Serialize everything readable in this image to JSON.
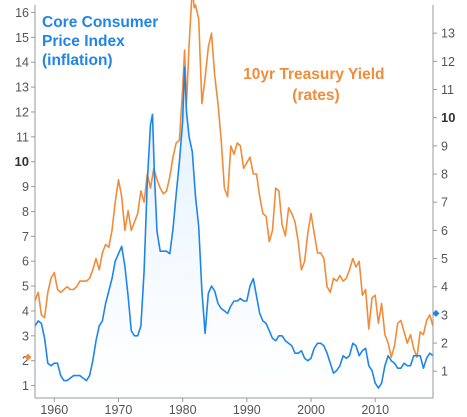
{
  "chart_data": {
    "type": "line",
    "title": "",
    "xlabel": "",
    "x_ticks": [
      "1960",
      "1970",
      "1980",
      "1990",
      "2000",
      "2010"
    ],
    "xlim": [
      1957,
      2019
    ],
    "left_axis": {
      "range": [
        0.5,
        16.3
      ],
      "ticks": [
        "1",
        "2",
        "3",
        "4",
        "5",
        "6",
        "7",
        "8",
        "9",
        "10",
        "11",
        "12",
        "13",
        "14",
        "15",
        "16"
      ],
      "bold_tick": "10"
    },
    "right_axis": {
      "range": [
        0.05,
        14.0
      ],
      "ticks": [
        "1",
        "2",
        "3",
        "4",
        "5",
        "6",
        "7",
        "8",
        "9",
        "10",
        "11",
        "12",
        "13"
      ],
      "bold_tick": "10"
    },
    "grid": false,
    "series": [
      {
        "name_lines": [
          "Core Consumer",
          "Price Index",
          "(inflation)"
        ],
        "color": "#1f86e8",
        "fill": "#dceeff",
        "axis": "left",
        "points": [
          [
            1957.0,
            3.4
          ],
          [
            1957.5,
            3.6
          ],
          [
            1958.0,
            3.5
          ],
          [
            1958.5,
            2.9
          ],
          [
            1959.0,
            1.9
          ],
          [
            1959.5,
            1.8
          ],
          [
            1960.0,
            1.9
          ],
          [
            1960.5,
            1.9
          ],
          [
            1961.0,
            1.4
          ],
          [
            1961.5,
            1.2
          ],
          [
            1962.0,
            1.2
          ],
          [
            1962.5,
            1.3
          ],
          [
            1963.0,
            1.4
          ],
          [
            1963.5,
            1.4
          ],
          [
            1964.0,
            1.4
          ],
          [
            1964.5,
            1.3
          ],
          [
            1965.0,
            1.2
          ],
          [
            1965.5,
            1.4
          ],
          [
            1966.0,
            2.0
          ],
          [
            1966.5,
            2.8
          ],
          [
            1967.0,
            3.4
          ],
          [
            1967.5,
            3.6
          ],
          [
            1968.0,
            4.3
          ],
          [
            1968.5,
            4.8
          ],
          [
            1969.0,
            5.3
          ],
          [
            1969.5,
            6.0
          ],
          [
            1970.0,
            6.3
          ],
          [
            1970.5,
            6.6
          ],
          [
            1971.0,
            5.8
          ],
          [
            1971.5,
            4.6
          ],
          [
            1972.0,
            3.2
          ],
          [
            1972.5,
            3.0
          ],
          [
            1973.0,
            3.0
          ],
          [
            1973.5,
            3.4
          ],
          [
            1974.0,
            5.6
          ],
          [
            1974.5,
            9.2
          ],
          [
            1975.0,
            11.5
          ],
          [
            1975.3,
            11.9
          ],
          [
            1975.6,
            9.5
          ],
          [
            1976.0,
            7.2
          ],
          [
            1976.5,
            6.4
          ],
          [
            1977.0,
            6.4
          ],
          [
            1977.5,
            6.4
          ],
          [
            1978.0,
            6.3
          ],
          [
            1978.5,
            7.3
          ],
          [
            1979.0,
            8.7
          ],
          [
            1979.5,
            10.0
          ],
          [
            1980.0,
            11.6
          ],
          [
            1980.3,
            13.8
          ],
          [
            1980.6,
            12.0
          ],
          [
            1981.0,
            11.0
          ],
          [
            1981.5,
            10.4
          ],
          [
            1982.0,
            8.6
          ],
          [
            1982.5,
            7.4
          ],
          [
            1983.0,
            4.8
          ],
          [
            1983.5,
            3.1
          ],
          [
            1984.0,
            4.7
          ],
          [
            1984.5,
            5.0
          ],
          [
            1985.0,
            4.8
          ],
          [
            1985.5,
            4.3
          ],
          [
            1986.0,
            4.1
          ],
          [
            1986.5,
            4.0
          ],
          [
            1987.0,
            3.9
          ],
          [
            1987.5,
            4.2
          ],
          [
            1988.0,
            4.4
          ],
          [
            1988.5,
            4.4
          ],
          [
            1989.0,
            4.5
          ],
          [
            1989.5,
            4.4
          ],
          [
            1990.0,
            4.4
          ],
          [
            1990.5,
            5.0
          ],
          [
            1991.0,
            5.3
          ],
          [
            1991.5,
            4.6
          ],
          [
            1992.0,
            3.9
          ],
          [
            1992.5,
            3.6
          ],
          [
            1993.0,
            3.5
          ],
          [
            1993.5,
            3.2
          ],
          [
            1994.0,
            2.9
          ],
          [
            1994.5,
            2.8
          ],
          [
            1995.0,
            3.0
          ],
          [
            1995.5,
            3.0
          ],
          [
            1996.0,
            2.8
          ],
          [
            1996.5,
            2.7
          ],
          [
            1997.0,
            2.6
          ],
          [
            1997.5,
            2.3
          ],
          [
            1998.0,
            2.3
          ],
          [
            1998.5,
            2.4
          ],
          [
            1999.0,
            2.1
          ],
          [
            1999.5,
            2.0
          ],
          [
            2000.0,
            2.1
          ],
          [
            2000.5,
            2.5
          ],
          [
            2001.0,
            2.7
          ],
          [
            2001.5,
            2.7
          ],
          [
            2002.0,
            2.6
          ],
          [
            2002.5,
            2.3
          ],
          [
            2003.0,
            1.9
          ],
          [
            2003.5,
            1.5
          ],
          [
            2004.0,
            1.6
          ],
          [
            2004.5,
            1.8
          ],
          [
            2005.0,
            2.2
          ],
          [
            2005.5,
            2.1
          ],
          [
            2006.0,
            2.2
          ],
          [
            2006.5,
            2.7
          ],
          [
            2007.0,
            2.6
          ],
          [
            2007.5,
            2.2
          ],
          [
            2008.0,
            2.4
          ],
          [
            2008.5,
            2.5
          ],
          [
            2009.0,
            1.8
          ],
          [
            2009.5,
            1.6
          ],
          [
            2010.0,
            1.1
          ],
          [
            2010.5,
            0.9
          ],
          [
            2011.0,
            1.1
          ],
          [
            2011.5,
            1.8
          ],
          [
            2012.0,
            2.2
          ],
          [
            2012.5,
            2.0
          ],
          [
            2013.0,
            1.9
          ],
          [
            2013.5,
            1.7
          ],
          [
            2014.0,
            1.7
          ],
          [
            2014.5,
            1.9
          ],
          [
            2015.0,
            1.8
          ],
          [
            2015.5,
            1.8
          ],
          [
            2016.0,
            2.2
          ],
          [
            2016.5,
            2.2
          ],
          [
            2017.0,
            2.2
          ],
          [
            2017.5,
            1.7
          ],
          [
            2018.0,
            2.1
          ],
          [
            2018.5,
            2.3
          ],
          [
            2019.0,
            2.2
          ]
        ],
        "end_marker": 3.9
      },
      {
        "name_lines": [
          "10yr Treasury Yield",
          "(rates)"
        ],
        "color": "#f08c3a",
        "axis": "right",
        "points": [
          [
            1957.0,
            3.5
          ],
          [
            1957.5,
            3.8
          ],
          [
            1958.0,
            3.0
          ],
          [
            1958.5,
            2.9
          ],
          [
            1959.0,
            3.8
          ],
          [
            1959.5,
            4.3
          ],
          [
            1960.0,
            4.5
          ],
          [
            1960.5,
            3.9
          ],
          [
            1961.0,
            3.8
          ],
          [
            1961.5,
            3.9
          ],
          [
            1962.0,
            4.0
          ],
          [
            1962.5,
            3.9
          ],
          [
            1963.0,
            3.9
          ],
          [
            1963.5,
            4.0
          ],
          [
            1964.0,
            4.2
          ],
          [
            1964.5,
            4.2
          ],
          [
            1965.0,
            4.2
          ],
          [
            1965.5,
            4.3
          ],
          [
            1966.0,
            4.6
          ],
          [
            1966.5,
            5.0
          ],
          [
            1967.0,
            4.6
          ],
          [
            1967.5,
            5.2
          ],
          [
            1968.0,
            5.5
          ],
          [
            1968.5,
            5.4
          ],
          [
            1969.0,
            6.0
          ],
          [
            1969.5,
            7.0
          ],
          [
            1970.0,
            7.8
          ],
          [
            1970.5,
            7.2
          ],
          [
            1971.0,
            6.0
          ],
          [
            1971.5,
            6.7
          ],
          [
            1972.0,
            6.0
          ],
          [
            1972.5,
            6.3
          ],
          [
            1973.0,
            6.6
          ],
          [
            1973.5,
            7.4
          ],
          [
            1974.0,
            7.0
          ],
          [
            1974.5,
            8.0
          ],
          [
            1975.0,
            7.5
          ],
          [
            1975.5,
            8.2
          ],
          [
            1976.0,
            7.8
          ],
          [
            1976.5,
            7.5
          ],
          [
            1977.0,
            7.3
          ],
          [
            1977.5,
            7.4
          ],
          [
            1978.0,
            7.9
          ],
          [
            1978.5,
            8.6
          ],
          [
            1979.0,
            9.1
          ],
          [
            1979.5,
            9.2
          ],
          [
            1980.0,
            11.0
          ],
          [
            1980.3,
            12.4
          ],
          [
            1980.6,
            10.5
          ],
          [
            1981.0,
            12.6
          ],
          [
            1981.5,
            14.6
          ],
          [
            1981.8,
            13.9
          ],
          [
            1982.0,
            14.0
          ],
          [
            1982.5,
            13.5
          ],
          [
            1983.0,
            10.5
          ],
          [
            1983.5,
            11.4
          ],
          [
            1984.0,
            12.5
          ],
          [
            1984.5,
            13.0
          ],
          [
            1985.0,
            11.5
          ],
          [
            1985.5,
            10.5
          ],
          [
            1986.0,
            9.2
          ],
          [
            1986.5,
            7.5
          ],
          [
            1987.0,
            7.2
          ],
          [
            1987.5,
            9.0
          ],
          [
            1988.0,
            8.7
          ],
          [
            1988.5,
            9.1
          ],
          [
            1989.0,
            9.0
          ],
          [
            1989.5,
            8.2
          ],
          [
            1990.0,
            8.4
          ],
          [
            1990.5,
            8.6
          ],
          [
            1991.0,
            8.0
          ],
          [
            1991.5,
            8.0
          ],
          [
            1992.0,
            7.2
          ],
          [
            1992.5,
            6.6
          ],
          [
            1993.0,
            6.5
          ],
          [
            1993.5,
            5.6
          ],
          [
            1994.0,
            6.0
          ],
          [
            1994.5,
            7.5
          ],
          [
            1995.0,
            7.4
          ],
          [
            1995.5,
            6.2
          ],
          [
            1996.0,
            5.8
          ],
          [
            1996.5,
            6.8
          ],
          [
            1997.0,
            6.6
          ],
          [
            1997.5,
            6.3
          ],
          [
            1998.0,
            5.6
          ],
          [
            1998.5,
            4.6
          ],
          [
            1999.0,
            4.9
          ],
          [
            1999.5,
            5.9
          ],
          [
            2000.0,
            6.6
          ],
          [
            2000.5,
            5.9
          ],
          [
            2001.0,
            5.2
          ],
          [
            2001.5,
            5.2
          ],
          [
            2002.0,
            5.0
          ],
          [
            2002.5,
            4.0
          ],
          [
            2003.0,
            3.8
          ],
          [
            2003.5,
            4.3
          ],
          [
            2004.0,
            4.2
          ],
          [
            2004.5,
            4.4
          ],
          [
            2005.0,
            4.2
          ],
          [
            2005.5,
            4.3
          ],
          [
            2006.0,
            4.6
          ],
          [
            2006.5,
            5.0
          ],
          [
            2007.0,
            4.7
          ],
          [
            2007.5,
            4.9
          ],
          [
            2008.0,
            3.7
          ],
          [
            2008.5,
            3.9
          ],
          [
            2009.0,
            2.5
          ],
          [
            2009.5,
            3.6
          ],
          [
            2010.0,
            3.7
          ],
          [
            2010.5,
            2.7
          ],
          [
            2011.0,
            3.4
          ],
          [
            2011.5,
            2.3
          ],
          [
            2012.0,
            2.0
          ],
          [
            2012.5,
            1.5
          ],
          [
            2013.0,
            1.9
          ],
          [
            2013.5,
            2.7
          ],
          [
            2014.0,
            2.8
          ],
          [
            2014.5,
            2.4
          ],
          [
            2015.0,
            2.0
          ],
          [
            2015.5,
            2.3
          ],
          [
            2016.0,
            1.8
          ],
          [
            2016.5,
            1.5
          ],
          [
            2017.0,
            2.4
          ],
          [
            2017.5,
            2.3
          ],
          [
            2018.0,
            2.8
          ],
          [
            2018.5,
            3.0
          ],
          [
            2019.0,
            2.6
          ]
        ],
        "start_marker": 1.5
      }
    ]
  }
}
